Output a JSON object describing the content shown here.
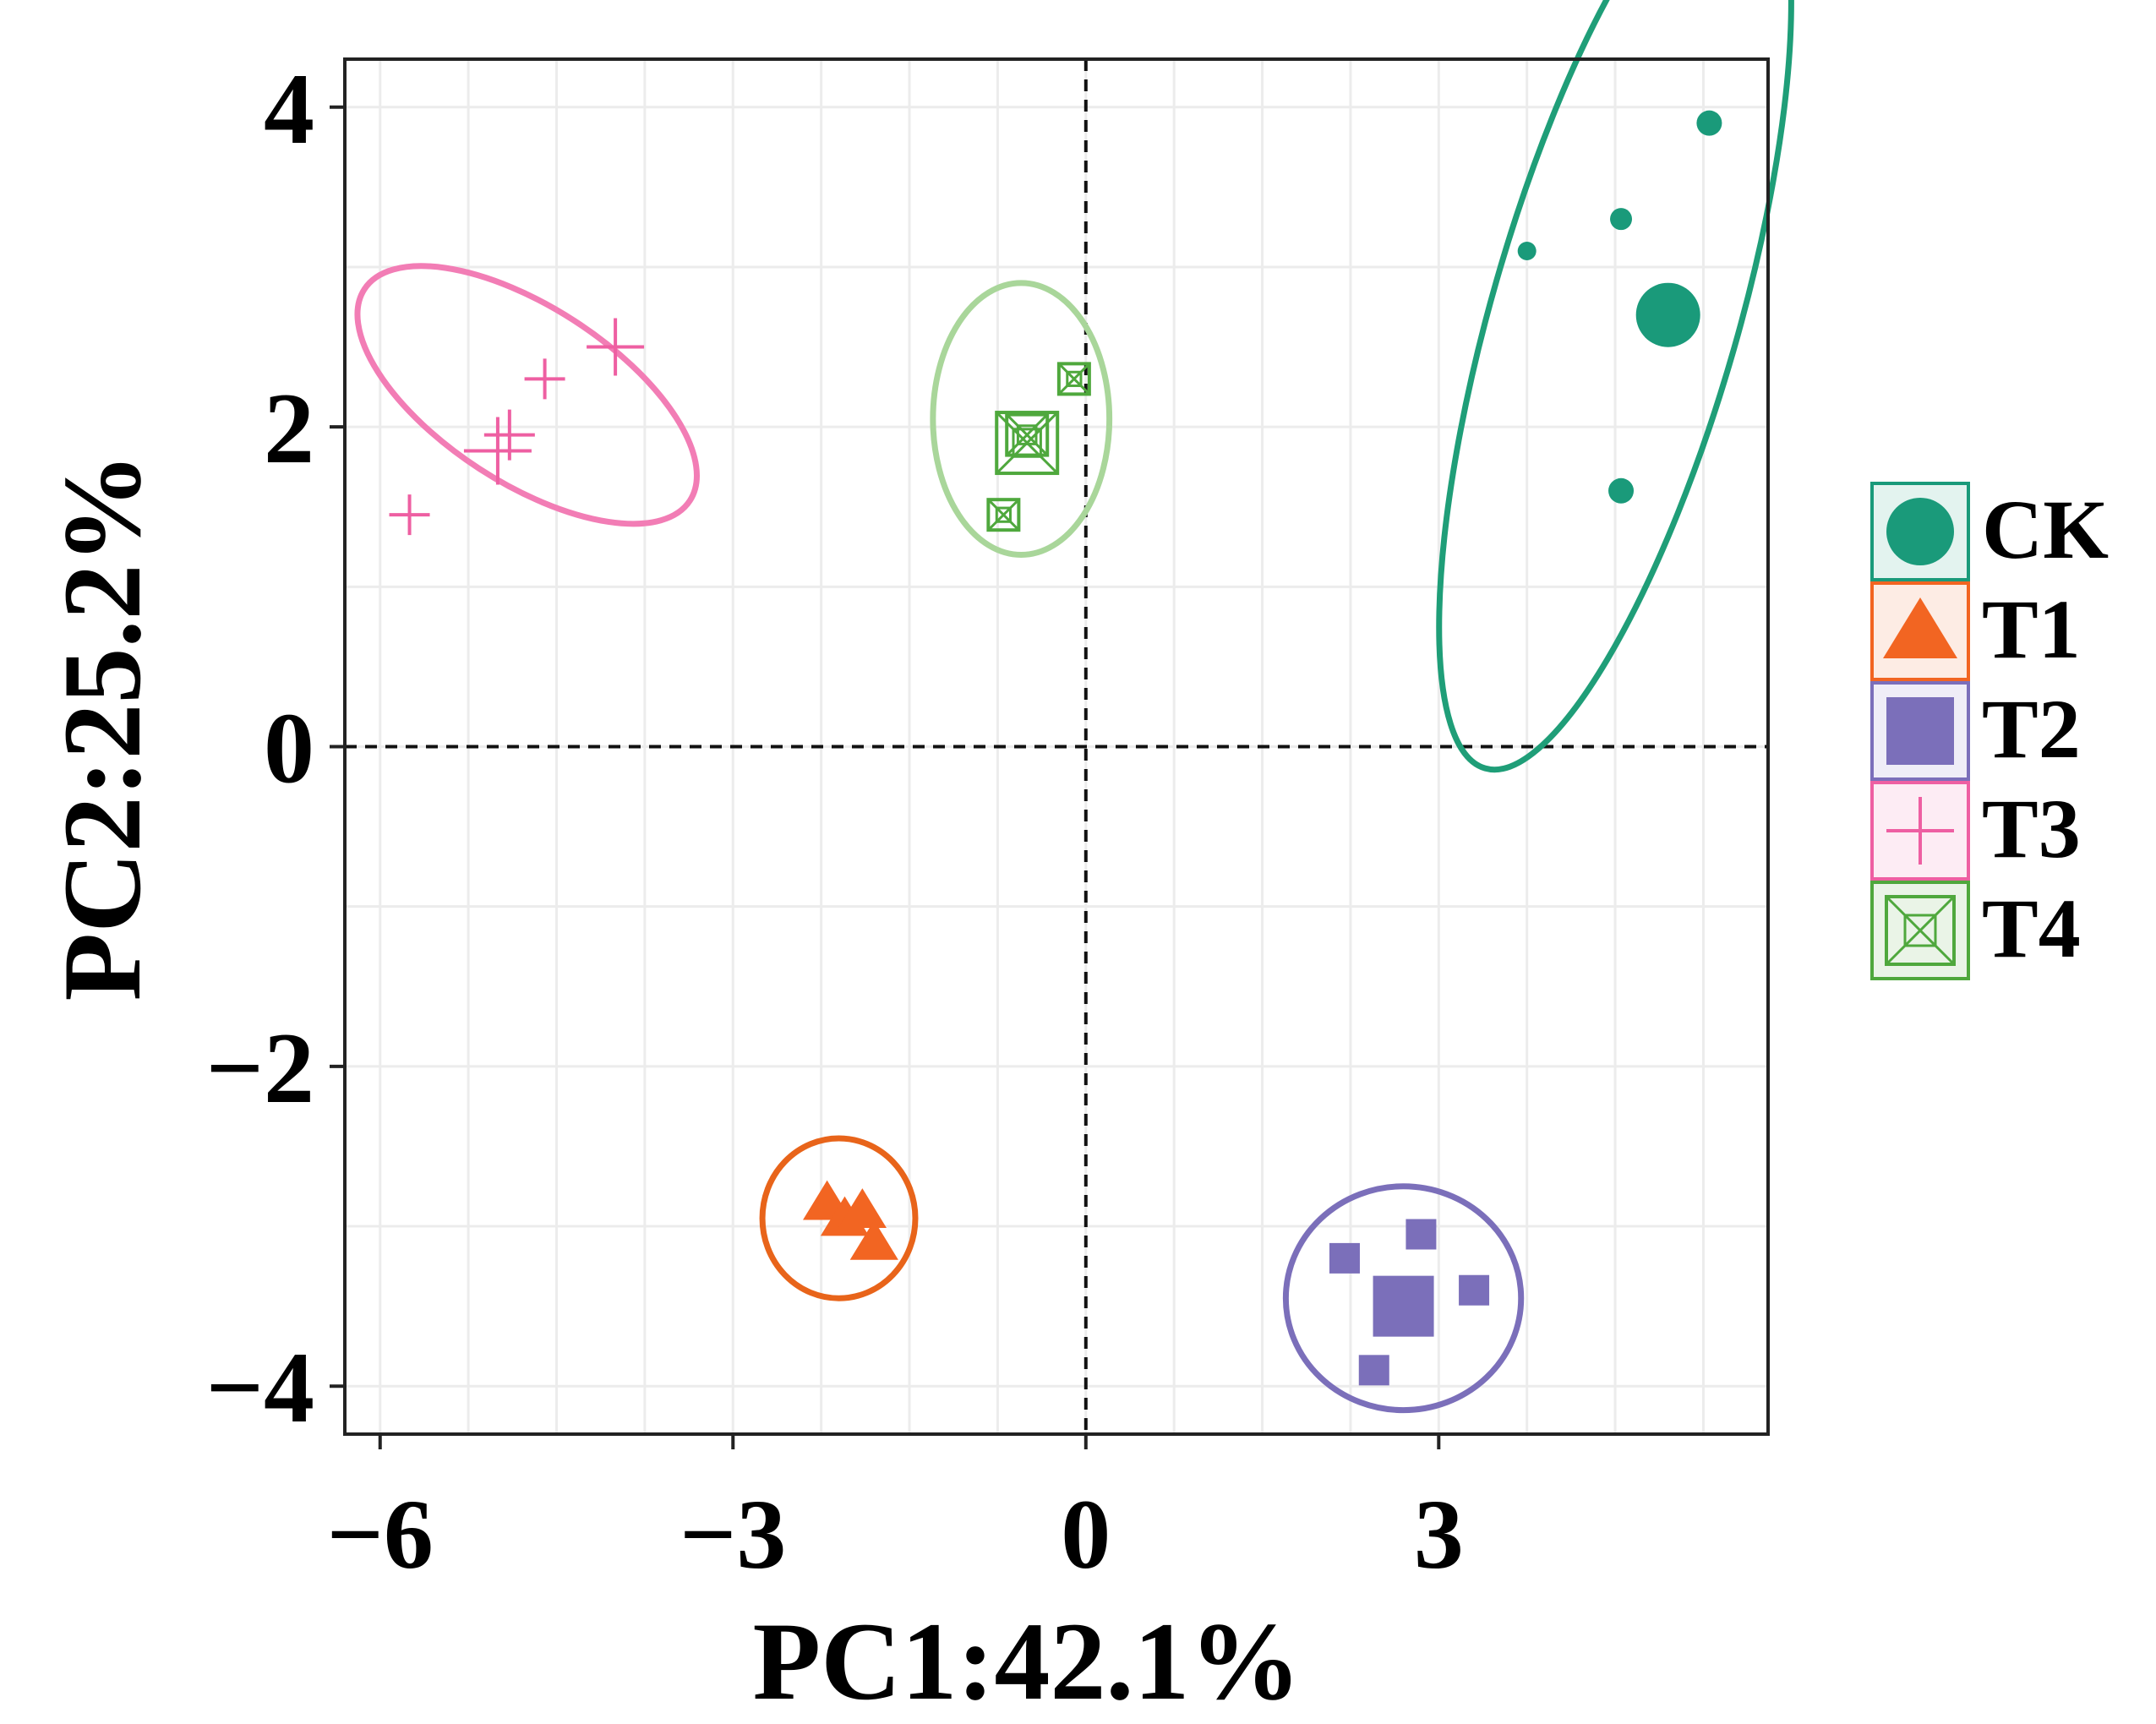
{
  "chart_data": {
    "type": "scatter",
    "title": "",
    "xlabel": "PC1:42.1%",
    "ylabel": "PC2:25.2%",
    "xlim": [
      -6.3,
      5.8
    ],
    "ylim": [
      -4.3,
      4.3
    ],
    "x_ticks": [
      -6,
      -3,
      0,
      3
    ],
    "x_tick_labels": [
      "−6",
      "−3",
      "0",
      "3"
    ],
    "y_ticks": [
      4,
      2,
      0,
      -2,
      -4
    ],
    "y_tick_labels": [
      "4",
      "2",
      "0",
      "−2",
      "−4"
    ],
    "grid": true,
    "reference_lines": {
      "x": 0,
      "y": 0,
      "style": "dashed"
    },
    "legend_position": "right",
    "series": [
      {
        "name": "CK",
        "marker": "circle",
        "color": "#1a9a7a",
        "x": [
          5.3,
          4.55,
          3.75,
          4.95,
          4.55
        ],
        "y": [
          3.9,
          3.3,
          3.1,
          2.7,
          1.6
        ],
        "ellipse": {
          "cx": 4.5,
          "cy": 2.7,
          "rx": 1.05,
          "ry": 2.95,
          "angle": 16
        }
      },
      {
        "name": "T1",
        "marker": "triangle",
        "color": "#f26522",
        "x": [
          -2.2,
          -2.05,
          -1.9,
          -1.8
        ],
        "y": [
          -2.85,
          -2.95,
          -2.9,
          -3.1
        ],
        "ellipse": {
          "cx": -2.1,
          "cy": -2.95,
          "rx": 0.65,
          "ry": 0.5,
          "angle": 0
        }
      },
      {
        "name": "T2",
        "marker": "square",
        "color": "#7b6fba",
        "x": [
          2.2,
          2.85,
          2.7,
          3.3,
          2.45
        ],
        "y": [
          -3.2,
          -3.05,
          -3.5,
          -3.4,
          -3.9
        ],
        "ellipse": {
          "cx": 2.7,
          "cy": -3.45,
          "rx": 1.0,
          "ry": 0.7,
          "angle": 0
        }
      },
      {
        "name": "T3",
        "marker": "plus",
        "color": "#ee5fa2",
        "x": [
          -5.75,
          -5.0,
          -4.9,
          -4.6,
          -4.0
        ],
        "y": [
          1.45,
          1.85,
          1.95,
          2.3,
          2.5
        ],
        "ellipse": {
          "cx": -4.75,
          "cy": 2.2,
          "rx": 1.65,
          "ry": 0.55,
          "angle": 33
        }
      },
      {
        "name": "T4",
        "marker": "boxed-x",
        "color": "#4fa83d",
        "x": [
          -0.1,
          -0.5,
          -0.5,
          -0.7
        ],
        "y": [
          2.3,
          1.9,
          1.95,
          1.45
        ],
        "ellipse": {
          "cx": -0.55,
          "cy": 2.05,
          "rx": 0.75,
          "ry": 0.85,
          "angle": 0
        }
      }
    ]
  },
  "colors": {
    "ck": "#1a9a7a",
    "ck_ellipse": "#1f9e78",
    "t1": "#f26522",
    "t1_ellipse": "#e8641a",
    "t2": "#7b6fba",
    "t2_ellipse": "#7b6fba",
    "t3": "#ee5fa2",
    "t3_ellipse": "#f27db5",
    "t4": "#4fa83d",
    "t4_ellipse": "#a9d69a"
  }
}
